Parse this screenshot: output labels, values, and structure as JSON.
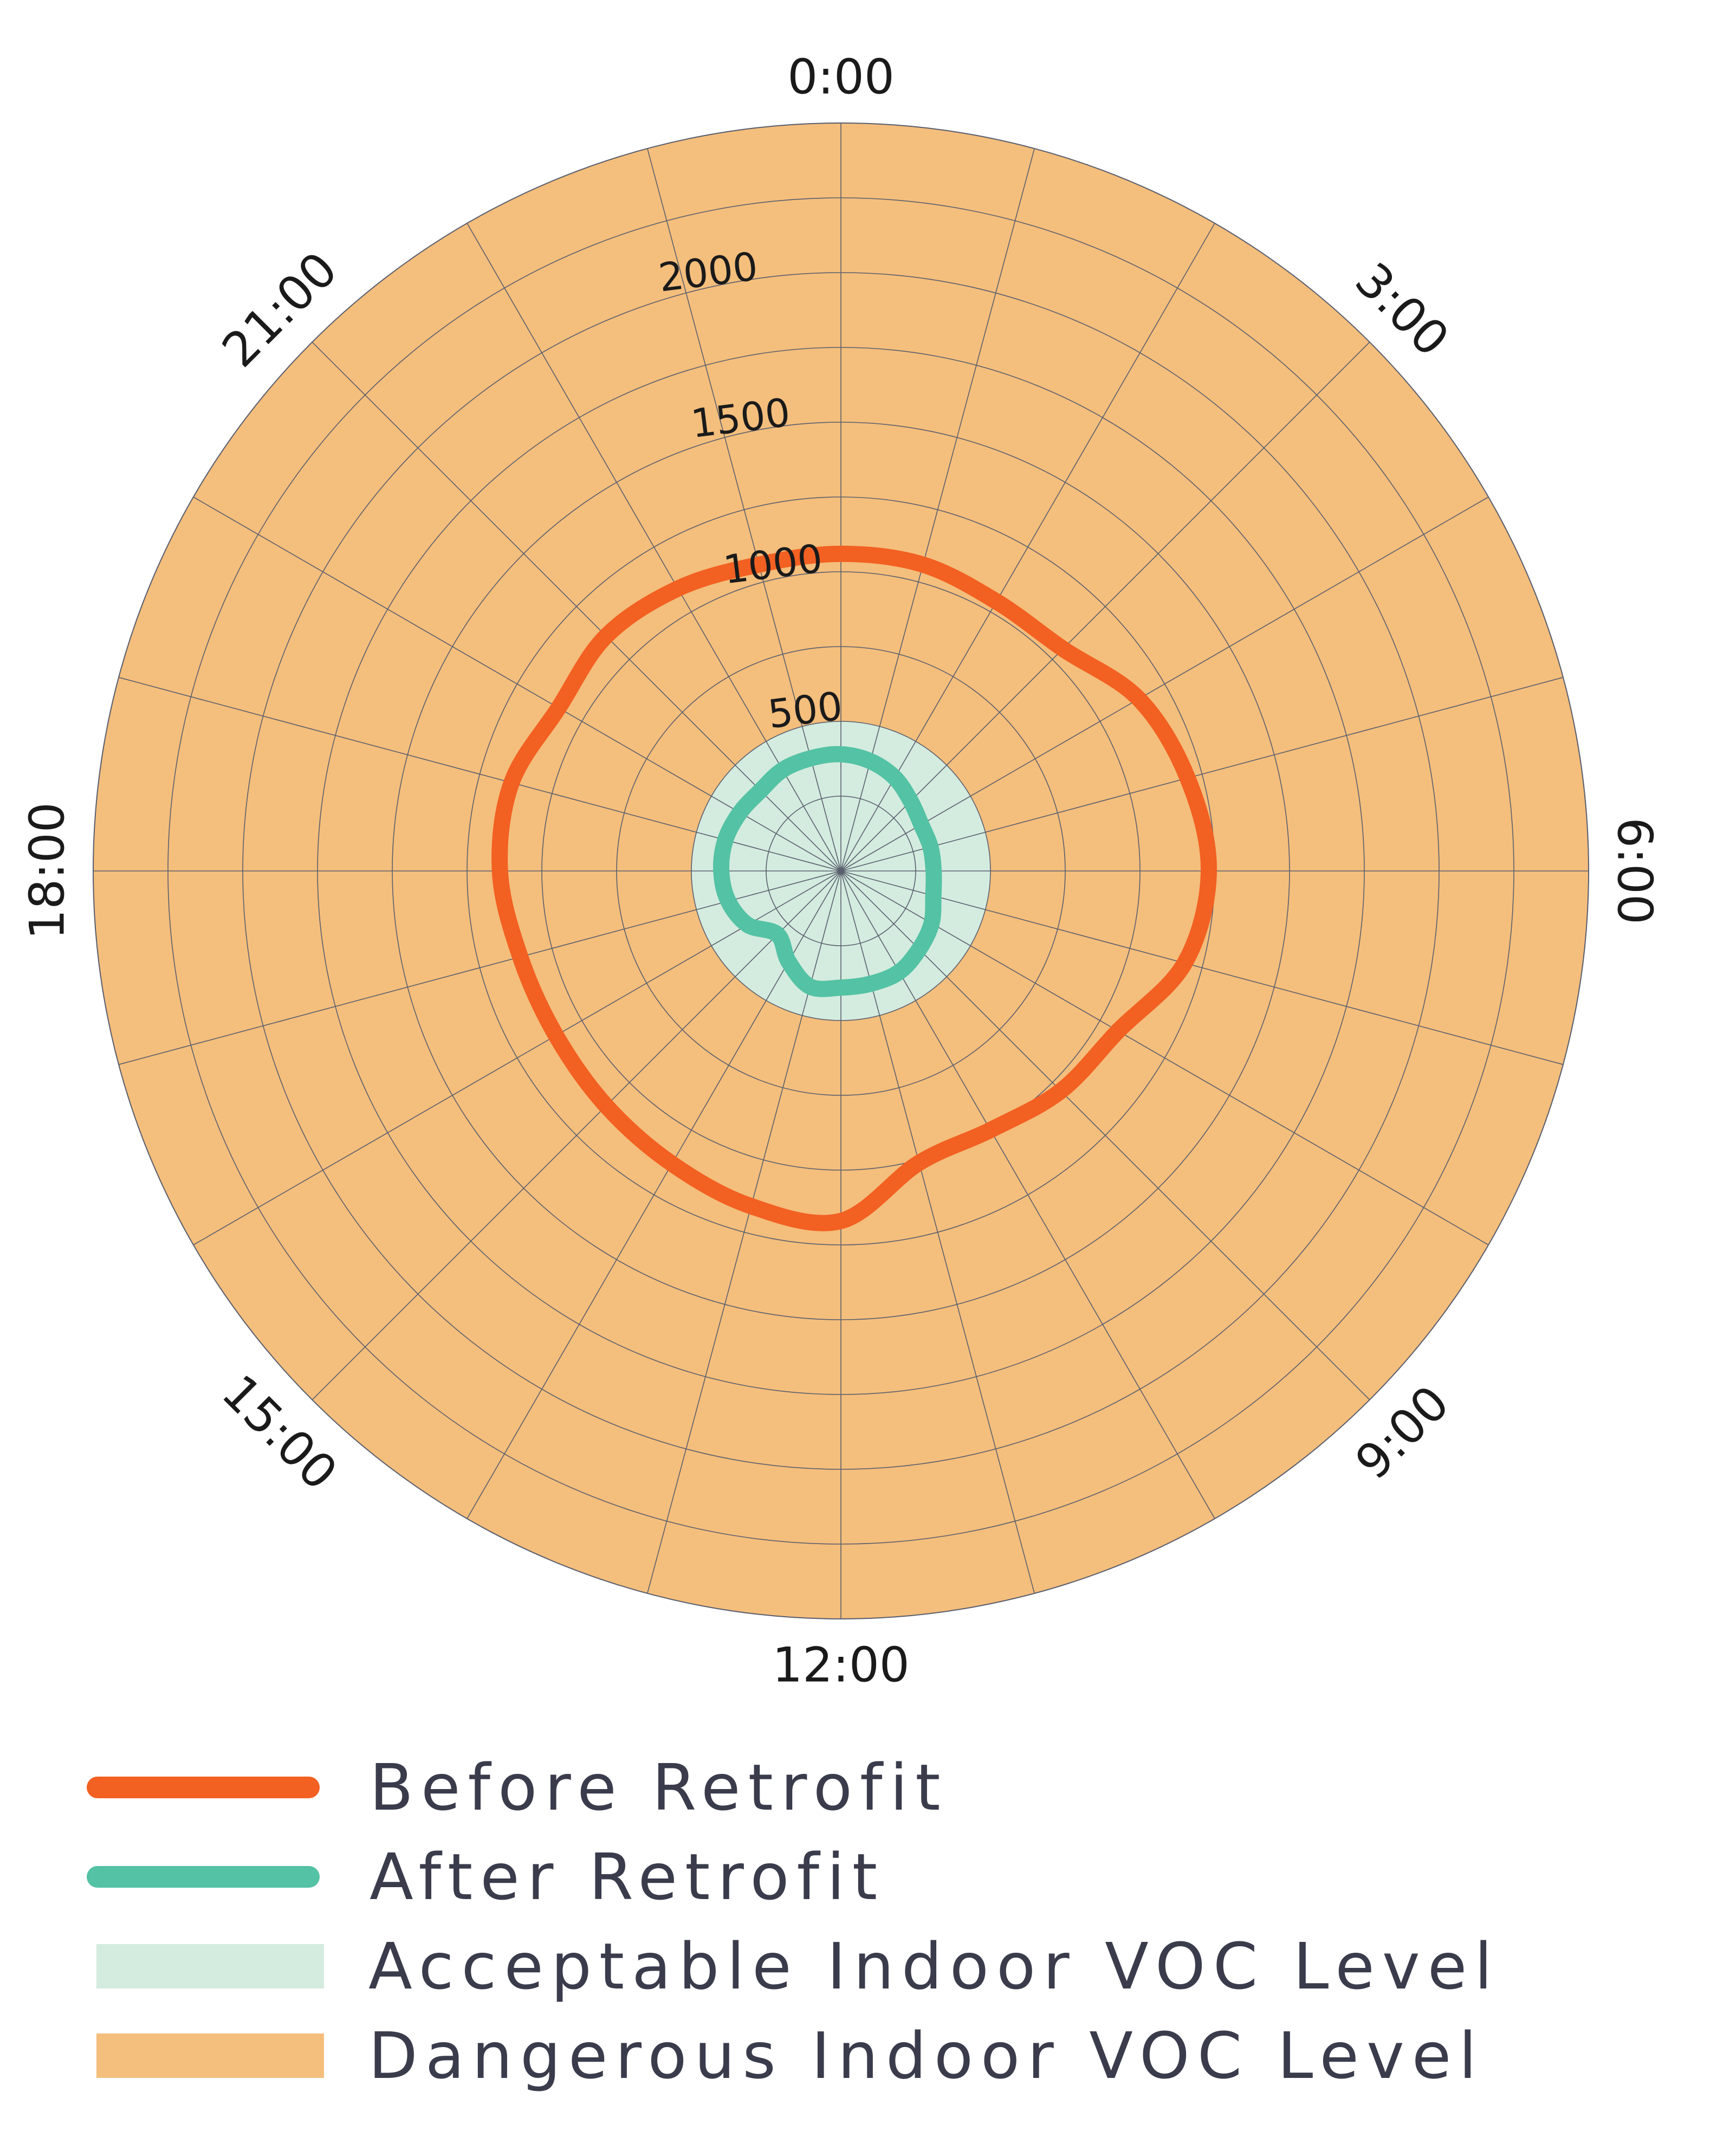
{
  "chart_data": {
    "type": "polar-line",
    "theta_ticks": [
      "0:00",
      "3:00",
      "6:00",
      "9:00",
      "12:00",
      "15:00",
      "18:00",
      "21:00"
    ],
    "r_ticks": [
      "500",
      "1000",
      "1500",
      "2000"
    ],
    "r_max": 2500,
    "r_grid_step": 250,
    "angular_divisions": 24,
    "acceptable_threshold": 500,
    "series": [
      {
        "name": "Before Retrofit",
        "color": "#f26022",
        "hours": [
          0,
          1,
          2,
          3,
          4,
          5,
          6,
          7,
          8,
          9,
          10,
          11,
          12,
          13,
          14,
          15,
          16,
          17,
          18,
          19,
          20,
          21,
          22,
          23
        ],
        "values": [
          1060,
          1060,
          1040,
          1050,
          1150,
          1200,
          1230,
          1190,
          1070,
          1040,
          1000,
          1010,
          1170,
          1160,
          1130,
          1110,
          1100,
          1110,
          1140,
          1140,
          1090,
          1110,
          1090,
          1060
        ]
      },
      {
        "name": "After Retrofit",
        "color": "#54c2a4",
        "hours": [
          0,
          1,
          2,
          3,
          4,
          5,
          6,
          7,
          8,
          9,
          10,
          11,
          12,
          13,
          14,
          15,
          16,
          17,
          18,
          19,
          20,
          21,
          22,
          23
        ],
        "values": [
          390,
          380,
          360,
          330,
          310,
          310,
          310,
          320,
          350,
          370,
          390,
          390,
          390,
          400,
          350,
          300,
          360,
          390,
          400,
          400,
          390,
          380,
          390,
          390
        ]
      }
    ],
    "regions": [
      {
        "name": "Acceptable Indoor VOC Level",
        "from": 0,
        "to": 500,
        "color": "#d4ecdf"
      },
      {
        "name": "Dangerous Indoor VOC Level",
        "from": 500,
        "to": 2500,
        "color": "#f4be7c"
      }
    ]
  },
  "legend": {
    "items": [
      {
        "label": "Before Retrofit",
        "kind": "line",
        "color": "#f26022"
      },
      {
        "label": "After Retrofit",
        "kind": "line",
        "color": "#54c2a4"
      },
      {
        "label": "Acceptable Indoor VOC Level",
        "kind": "area",
        "color": "#d4ecdf"
      },
      {
        "label": "Dangerous Indoor VOC Level",
        "kind": "area",
        "color": "#f4be7c"
      }
    ]
  }
}
